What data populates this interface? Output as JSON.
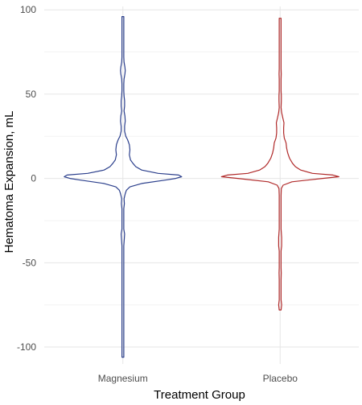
{
  "chart_data": {
    "type": "violin",
    "xlabel": "Treatment Group",
    "ylabel": "Hematoma Expansion, mL",
    "ylim": [
      -110,
      102
    ],
    "yticks": [
      100,
      50,
      0,
      -50,
      -100
    ],
    "categories": [
      "Magnesium",
      "Placebo"
    ],
    "grid": true,
    "series": [
      {
        "name": "Magnesium",
        "color": "#2b3f8c",
        "profile": [
          [
            -106,
            0.01
          ],
          [
            -100,
            0.008
          ],
          [
            -80,
            0.008
          ],
          [
            -60,
            0.008
          ],
          [
            -40,
            0.01
          ],
          [
            -33,
            0.03
          ],
          [
            -30,
            0.015
          ],
          [
            -25,
            0.01
          ],
          [
            -18,
            0.015
          ],
          [
            -15,
            0.025
          ],
          [
            -12,
            0.02
          ],
          [
            -9,
            0.04
          ],
          [
            -7,
            0.06
          ],
          [
            -5,
            0.12
          ],
          [
            -3,
            0.32
          ],
          [
            -1,
            0.72
          ],
          [
            0,
            0.9
          ],
          [
            1,
            1.0
          ],
          [
            2,
            0.95
          ],
          [
            3,
            0.6
          ],
          [
            5,
            0.32
          ],
          [
            7,
            0.22
          ],
          [
            9,
            0.17
          ],
          [
            11,
            0.13
          ],
          [
            14,
            0.11
          ],
          [
            17,
            0.12
          ],
          [
            20,
            0.11
          ],
          [
            23,
            0.08
          ],
          [
            25,
            0.05
          ],
          [
            28,
            0.03
          ],
          [
            31,
            0.03
          ],
          [
            34,
            0.04
          ],
          [
            37,
            0.035
          ],
          [
            40,
            0.02
          ],
          [
            43,
            0.03
          ],
          [
            46,
            0.03
          ],
          [
            49,
            0.02
          ],
          [
            52,
            0.01
          ],
          [
            56,
            0.008
          ],
          [
            59,
            0.02
          ],
          [
            62,
            0.035
          ],
          [
            64,
            0.04
          ],
          [
            66,
            0.035
          ],
          [
            69,
            0.02
          ],
          [
            72,
            0.008
          ],
          [
            80,
            0.006
          ],
          [
            90,
            0.006
          ],
          [
            96,
            0.01
          ]
        ]
      },
      {
        "name": "Placebo",
        "color": "#b02a2a",
        "profile": [
          [
            -78,
            0.01
          ],
          [
            -75,
            0.025
          ],
          [
            -72,
            0.012
          ],
          [
            -68,
            0.008
          ],
          [
            -60,
            0.008
          ],
          [
            -56,
            0.018
          ],
          [
            -53,
            0.01
          ],
          [
            -48,
            0.006
          ],
          [
            -43,
            0.015
          ],
          [
            -40,
            0.025
          ],
          [
            -35,
            0.025
          ],
          [
            -30,
            0.012
          ],
          [
            -25,
            0.008
          ],
          [
            -15,
            0.008
          ],
          [
            -10,
            0.01
          ],
          [
            -6,
            0.02
          ],
          [
            -4,
            0.05
          ],
          [
            -2,
            0.2
          ],
          [
            0,
            0.72
          ],
          [
            1,
            1.0
          ],
          [
            2,
            0.9
          ],
          [
            3,
            0.55
          ],
          [
            5,
            0.35
          ],
          [
            7,
            0.26
          ],
          [
            9,
            0.21
          ],
          [
            12,
            0.16
          ],
          [
            15,
            0.13
          ],
          [
            18,
            0.11
          ],
          [
            21,
            0.1
          ],
          [
            24,
            0.07
          ],
          [
            27,
            0.06
          ],
          [
            30,
            0.06
          ],
          [
            33,
            0.065
          ],
          [
            36,
            0.045
          ],
          [
            39,
            0.025
          ],
          [
            42,
            0.015
          ],
          [
            46,
            0.02
          ],
          [
            49,
            0.02
          ],
          [
            52,
            0.01
          ],
          [
            56,
            0.006
          ],
          [
            59,
            0.012
          ],
          [
            62,
            0.018
          ],
          [
            65,
            0.012
          ],
          [
            70,
            0.006
          ],
          [
            80,
            0.006
          ],
          [
            88,
            0.006
          ],
          [
            92,
            0.012
          ],
          [
            95,
            0.015
          ]
        ]
      }
    ]
  }
}
